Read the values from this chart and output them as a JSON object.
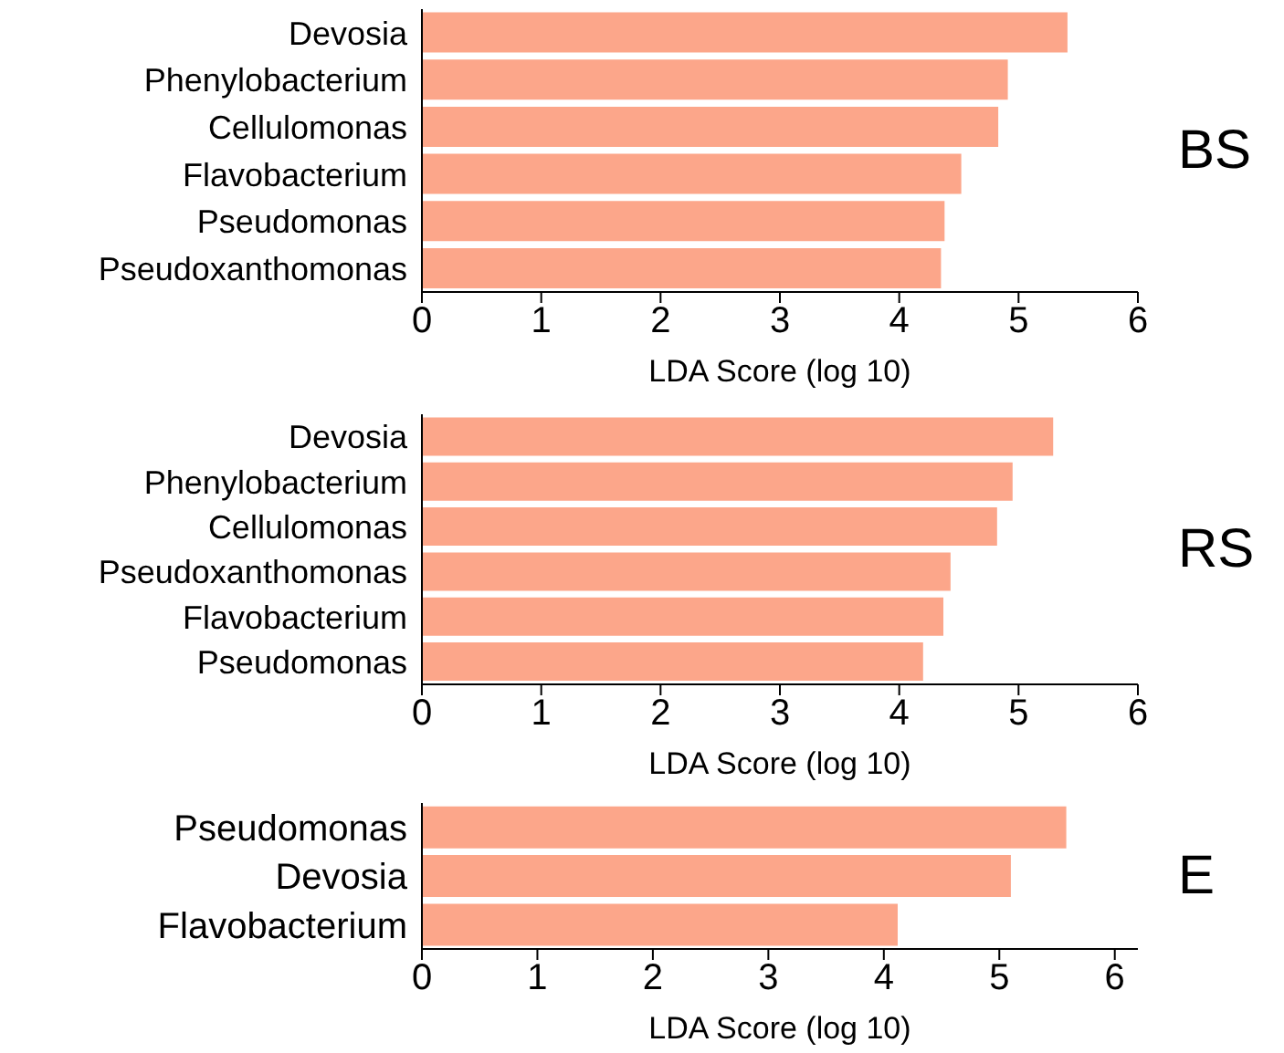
{
  "chart_data": [
    {
      "type": "bar",
      "orientation": "horizontal",
      "annotations": [
        "BS"
      ],
      "categories": [
        "Devosia",
        "Phenylobacterium",
        "Cellulomonas",
        "Flavobacterium",
        "Pseudomonas",
        "Pseudoxanthomonas"
      ],
      "values": [
        5.41,
        4.91,
        4.83,
        4.52,
        4.38,
        4.35
      ],
      "color": "#fca68a",
      "xlabel": "LDA Score (log 10)",
      "xlim": [
        0,
        6
      ],
      "xticks": [
        0,
        1,
        2,
        3,
        4,
        5,
        6
      ],
      "grid": false
    },
    {
      "type": "bar",
      "orientation": "horizontal",
      "annotations": [
        "RS"
      ],
      "categories": [
        "Devosia",
        "Phenylobacterium",
        "Cellulomonas",
        "Pseudoxanthomonas",
        "Flavobacterium",
        "Pseudomonas"
      ],
      "values": [
        5.29,
        4.95,
        4.82,
        4.43,
        4.37,
        4.2
      ],
      "color": "#fca68a",
      "xlabel": "LDA Score (log 10)",
      "xlim": [
        0,
        6
      ],
      "xticks": [
        0,
        1,
        2,
        3,
        4,
        5,
        6
      ],
      "grid": false
    },
    {
      "type": "bar",
      "orientation": "horizontal",
      "annotations": [
        "E"
      ],
      "categories": [
        "Pseudomonas",
        "Devosia",
        "Flavobacterium"
      ],
      "values": [
        5.58,
        5.1,
        4.12
      ],
      "color": "#fca68a",
      "xlabel": "LDA Score (log 10)",
      "xlim": [
        0,
        6.2
      ],
      "xticks": [
        0,
        1,
        2,
        3,
        4,
        5,
        6
      ],
      "grid": false
    }
  ]
}
